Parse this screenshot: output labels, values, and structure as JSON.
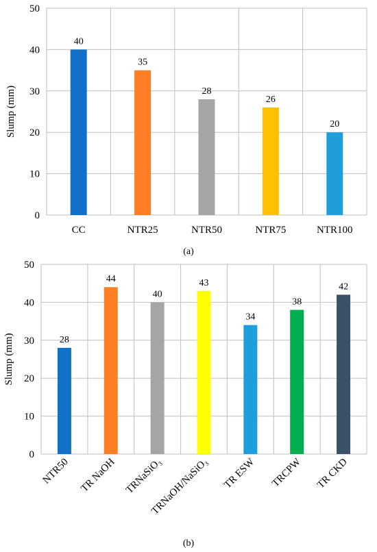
{
  "figure": {
    "captions": [
      "(a)",
      "(b)"
    ]
  },
  "chart_data": [
    {
      "type": "bar",
      "categories": [
        "CC",
        "NTR25",
        "NTR50",
        "NTR75",
        "NTR100"
      ],
      "values": [
        40,
        35,
        28,
        26,
        20
      ],
      "colors": [
        "#1370C8",
        "#FF7F27",
        "#A5A5A5",
        "#FFC000",
        "#1E9FDC"
      ],
      "data_labels": [
        "40",
        "35",
        "28",
        "26",
        "20"
      ],
      "title": "",
      "xlabel": "",
      "ylabel": "Slump (mm)",
      "ylim": [
        0,
        50
      ],
      "yticks": [
        0,
        10,
        20,
        30,
        40,
        50
      ],
      "grid": "both",
      "legend": "none"
    },
    {
      "type": "bar",
      "categories": [
        "NTR50",
        "TR NaOH",
        "TRNaSiO₃",
        "TRNaOH/NaSiO₃",
        "TR ESW",
        "TRCPW",
        "TR CKD"
      ],
      "values": [
        28,
        44,
        40,
        43,
        34,
        38,
        42
      ],
      "colors": [
        "#1370C8",
        "#FF7F27",
        "#A5A5A5",
        "#FFFF00",
        "#1E9FDC",
        "#00B050",
        "#3A5169"
      ],
      "data_labels": [
        "28",
        "44",
        "40",
        "43",
        "34",
        "38",
        "42"
      ],
      "title": "",
      "xlabel": "",
      "ylabel": "Slump (mm)",
      "ylim": [
        0,
        50
      ],
      "yticks": [
        0,
        10,
        20,
        30,
        40,
        50
      ],
      "grid": "both",
      "legend": "none"
    }
  ]
}
